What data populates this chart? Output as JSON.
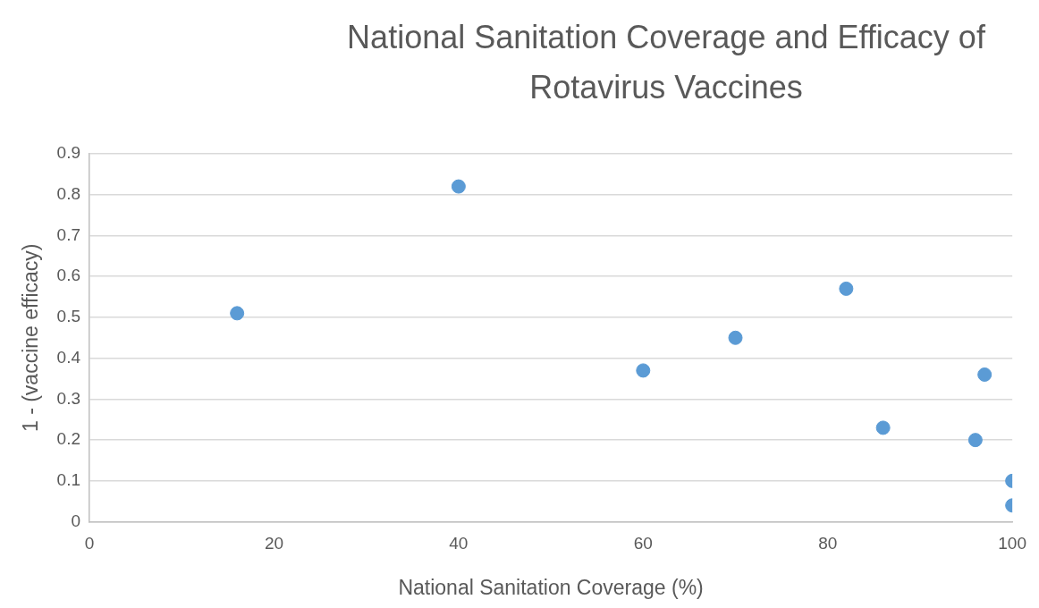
{
  "chart_data": {
    "type": "scatter",
    "title": "National Sanitation Coverage and Efficacy of Rotavirus Vaccines",
    "xlabel": "National Sanitation Coverage (%)",
    "ylabel": "1 - (vaccine efficacy)",
    "x": [
      16,
      40,
      60,
      70,
      82,
      86,
      97,
      96,
      100,
      100
    ],
    "values": [
      0.51,
      0.82,
      0.37,
      0.45,
      0.57,
      0.23,
      0.36,
      0.2,
      0.1,
      0.04
    ],
    "color": "#5b9bd5",
    "marker": "circle",
    "xlim": [
      0,
      100
    ],
    "xticks": [
      0,
      20,
      40,
      60,
      80,
      100
    ],
    "ylim": [
      0,
      0.9
    ],
    "yticks": [
      0,
      0.1,
      0.2,
      0.3,
      0.4,
      0.5,
      0.6,
      0.7,
      0.8,
      0.9
    ],
    "grid": "y",
    "legend": false
  }
}
